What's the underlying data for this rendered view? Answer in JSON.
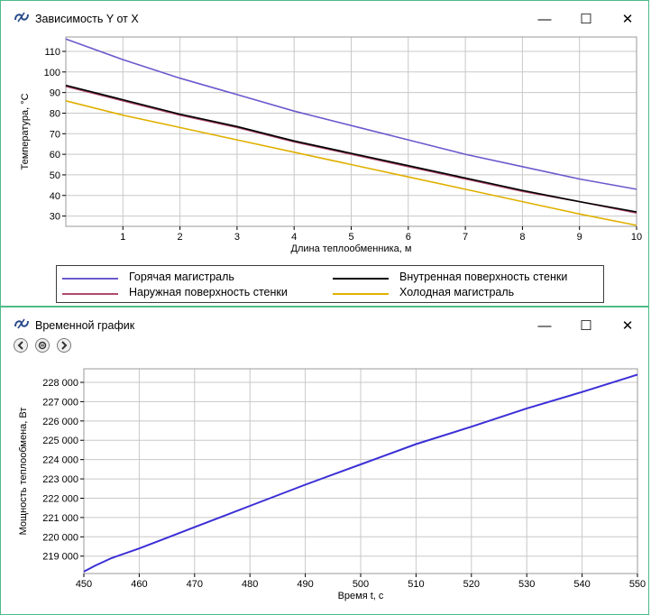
{
  "windows": [
    {
      "title": "Зависимость Y от X",
      "buttons": {
        "minimize": "—",
        "maximize": "☐",
        "close": "✕"
      }
    },
    {
      "title": "Временной график",
      "buttons": {
        "minimize": "—",
        "maximize": "☐",
        "close": "✕"
      },
      "nav_icons": [
        "back-icon",
        "pause-icon",
        "forward-icon"
      ]
    }
  ],
  "legend": {
    "items": [
      {
        "label": "Горячая магистраль",
        "color": "#6a5acd"
      },
      {
        "label": "Внутренная поверхность стенки",
        "color": "#000000"
      },
      {
        "label": "Наружная поверхность стенки",
        "color": "#b04a6e"
      },
      {
        "label": "Холодная магистраль",
        "color": "#e0b000"
      }
    ]
  },
  "chart_data": [
    {
      "type": "line",
      "xlabel": "Длина теплообменника, м",
      "ylabel": "Температура, °С",
      "xlim": [
        0,
        10
      ],
      "ylim": [
        25,
        117
      ],
      "xticks": [
        1,
        2,
        3,
        4,
        5,
        6,
        7,
        8,
        9,
        10
      ],
      "yticks": [
        30,
        40,
        50,
        60,
        70,
        80,
        90,
        100,
        110
      ],
      "grid": true,
      "legend_position": "bottom",
      "series": [
        {
          "name": "Горячая магистраль",
          "color": "#6a5acd",
          "x": [
            0,
            1,
            2,
            3,
            4,
            5,
            6,
            7,
            8,
            9,
            10
          ],
          "y": [
            116,
            106,
            97,
            89,
            81,
            74,
            67,
            60,
            54,
            48,
            43
          ]
        },
        {
          "name": "Наружная поверхность стенки",
          "color": "#b04a6e",
          "x": [
            0,
            1,
            2,
            3,
            4,
            5,
            6,
            7,
            8,
            9,
            10
          ],
          "y": [
            93,
            86,
            79,
            73,
            66,
            60,
            54,
            48,
            42,
            37,
            31.5
          ]
        },
        {
          "name": "Внутренная поверхность стенки",
          "color": "#000000",
          "x": [
            0,
            1,
            2,
            3,
            4,
            5,
            6,
            7,
            8,
            9,
            10
          ],
          "y": [
            93.5,
            86.5,
            79.5,
            73.5,
            66.5,
            60.5,
            54.5,
            48.5,
            42.5,
            37,
            32
          ]
        },
        {
          "name": "Холодная магистраль",
          "color": "#e0b000",
          "x": [
            0,
            1,
            2,
            3,
            4,
            5,
            6,
            7,
            8,
            9,
            10
          ],
          "y": [
            86,
            79,
            73,
            67,
            61,
            55,
            49,
            43,
            37,
            31,
            25.5
          ]
        }
      ]
    },
    {
      "type": "line",
      "xlabel": "Время t, с",
      "ylabel": "Мощность теплообмена, Вт",
      "xlim": [
        450,
        550
      ],
      "ylim": [
        218100,
        228700
      ],
      "xticks": [
        450,
        460,
        470,
        480,
        490,
        500,
        510,
        520,
        530,
        540,
        550
      ],
      "yticks": [
        219000,
        220000,
        221000,
        222000,
        223000,
        224000,
        225000,
        226000,
        227000,
        228000
      ],
      "ytick_labels": [
        "219 000",
        "220 000",
        "221 000",
        "222 000",
        "223 000",
        "224 000",
        "225 000",
        "226 000",
        "227 000",
        "228 000"
      ],
      "grid": true,
      "series": [
        {
          "name": "",
          "color": "#3b2fd6",
          "x": [
            450,
            452,
            455,
            460,
            465,
            470,
            480,
            490,
            500,
            510,
            520,
            530,
            540,
            550
          ],
          "y": [
            218200,
            218500,
            218900,
            219400,
            219950,
            220500,
            221600,
            222700,
            223750,
            224800,
            225700,
            226650,
            227500,
            228400
          ]
        }
      ]
    }
  ]
}
